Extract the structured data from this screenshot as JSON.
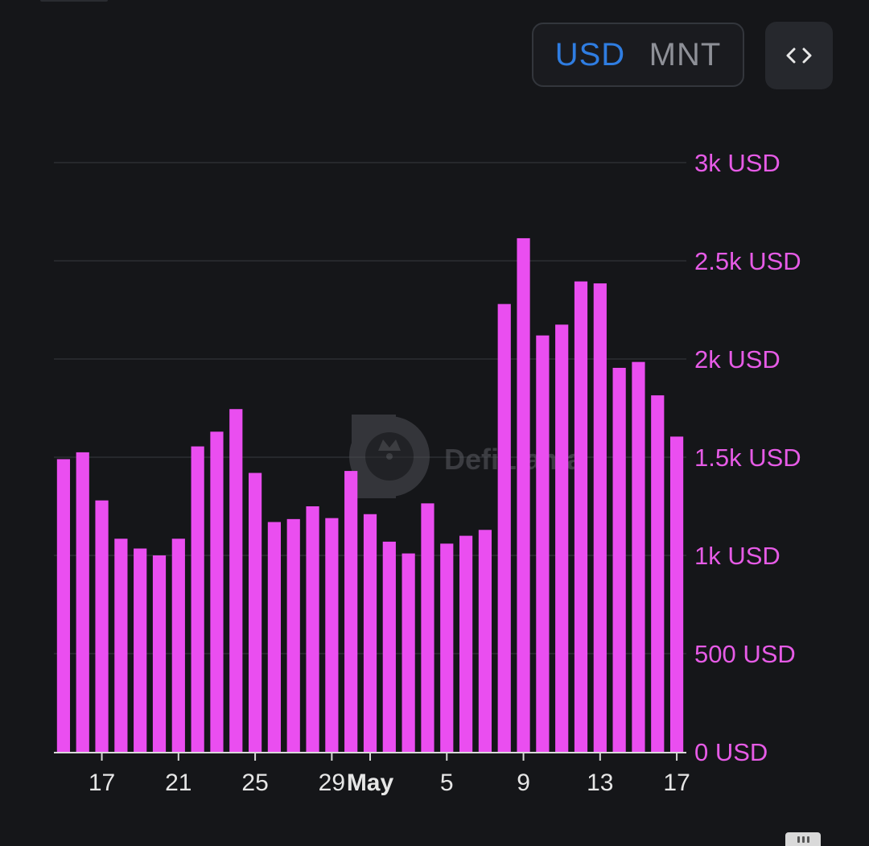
{
  "controls": {
    "currency_options": [
      "USD",
      "MNT"
    ],
    "active_currency": "USD",
    "embed_icon": "code-brackets-icon"
  },
  "watermark": {
    "text": "DefiLlama",
    "icon": "llama-logo-icon"
  },
  "colors": {
    "bar": "#ea4ef0",
    "y_labels": "#e65be6",
    "x_labels": "#e6e6e6",
    "grid": "#26282c",
    "axis": "#d8d8d8",
    "active_toggle": "#2f7de1",
    "background": "#151619"
  },
  "chart_data": {
    "type": "bar",
    "x_start": "2024-04-15",
    "values": [
      1490,
      1525,
      1280,
      1085,
      1035,
      1000,
      1085,
      1555,
      1630,
      1745,
      1420,
      1170,
      1185,
      1250,
      1190,
      1430,
      1210,
      1070,
      1010,
      1265,
      1060,
      1100,
      1130,
      2280,
      2615,
      2120,
      2175,
      2395,
      2385,
      1955,
      1985,
      1815,
      1605
    ],
    "series_name": "",
    "x_tick_labels": [
      {
        "label": "17",
        "index": 2,
        "bold": false
      },
      {
        "label": "21",
        "index": 6,
        "bold": false
      },
      {
        "label": "25",
        "index": 10,
        "bold": false
      },
      {
        "label": "29",
        "index": 14,
        "bold": false
      },
      {
        "label": "May",
        "index": 16,
        "bold": true
      },
      {
        "label": "5",
        "index": 20,
        "bold": false
      },
      {
        "label": "9",
        "index": 24,
        "bold": false
      },
      {
        "label": "13",
        "index": 28,
        "bold": false
      },
      {
        "label": "17",
        "index": 32,
        "bold": false
      }
    ],
    "y_ticks": [
      {
        "value": 0,
        "label": "0 USD"
      },
      {
        "value": 500,
        "label": "500 USD"
      },
      {
        "value": 1000,
        "label": "1k USD"
      },
      {
        "value": 1500,
        "label": "1.5k USD"
      },
      {
        "value": 2000,
        "label": "2k USD"
      },
      {
        "value": 2500,
        "label": "2.5k USD"
      },
      {
        "value": 3000,
        "label": "3k USD"
      }
    ],
    "ylim": [
      0,
      3000
    ],
    "y_axis_position": "right",
    "grid": true,
    "legend": "none"
  }
}
